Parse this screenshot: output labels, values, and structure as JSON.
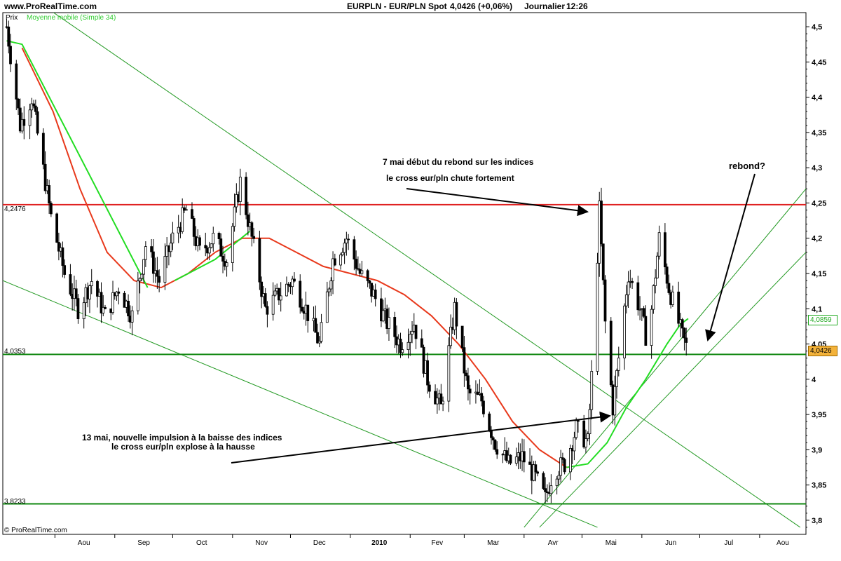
{
  "header": {
    "site": "www.ProRealTime.com",
    "instrument": "EURPLN - EUR/PLN Spot",
    "quote": "4,0426 (+0,06%)",
    "period": "Journalier",
    "time": "12:26"
  },
  "labels": {
    "price": "Prix",
    "ma_legend": "Moyenne mobile (Simple 34)",
    "copyright": "© ProRealTime.com"
  },
  "colors": {
    "up_candle": "#ffffff",
    "down_candle": "#000000",
    "ma_red": "#e8391c",
    "ma_green": "#22dd22",
    "resistance": "#e02020",
    "support": "#118811",
    "trendline": "#229922",
    "quote_box": "#f3b23a"
  },
  "annotations": [
    {
      "id": "a1",
      "text": "7 mai début du rebond sur les indices"
    },
    {
      "id": "a2",
      "text": "le cross eur/pln chute fortement"
    },
    {
      "id": "a3",
      "text": "rebond?"
    },
    {
      "id": "a4",
      "text": "13 mai, nouvelle impulsion à la baisse des indices"
    },
    {
      "id": "a5",
      "text": "le cross eur/pln explose à la hausse"
    }
  ],
  "chart_data": {
    "type": "candlestick",
    "title": "EURPLN - EUR/PLN Spot",
    "ylabel": "Prix",
    "ylim": [
      3.78,
      4.52
    ],
    "y_ticks": [
      "4,5",
      "4,45",
      "4,4",
      "4,35",
      "4,3",
      "4,25",
      "4,2",
      "4,15",
      "4,1",
      "4,05",
      "4",
      "3,95",
      "3,9",
      "3,85",
      "3,8"
    ],
    "x_ticks": [
      "Aou",
      "Sep",
      "Oct",
      "Nov",
      "Dec",
      "2010",
      "Fev",
      "Mar",
      "Avr",
      "Mai",
      "Jun",
      "Jul",
      "Aou"
    ],
    "horizontal_levels": [
      {
        "label": "4,2476",
        "value": 4.2476,
        "color": "red"
      },
      {
        "label": "4,0353",
        "value": 4.0353,
        "color": "green"
      },
      {
        "label": "3,8233",
        "value": 3.8233,
        "color": "green"
      }
    ],
    "last_price": {
      "label": "4,0426",
      "value": 4.0426
    },
    "ma_value": {
      "label": "4,0859",
      "value": 4.0859
    },
    "price_path": [
      [
        "2009-07-07",
        4.5
      ],
      [
        "2009-07-10",
        4.44
      ],
      [
        "2009-07-14",
        4.36
      ],
      [
        "2009-07-20",
        4.4
      ],
      [
        "2009-07-24",
        4.33
      ],
      [
        "2009-07-30",
        4.23
      ],
      [
        "2009-08-06",
        4.15
      ],
      [
        "2009-08-13",
        4.1
      ],
      [
        "2009-08-20",
        4.14
      ],
      [
        "2009-08-27",
        4.09
      ],
      [
        "2009-09-03",
        4.13
      ],
      [
        "2009-09-10",
        4.09
      ],
      [
        "2009-09-17",
        4.19
      ],
      [
        "2009-09-24",
        4.14
      ],
      [
        "2009-10-01",
        4.2
      ],
      [
        "2009-10-08",
        4.24
      ],
      [
        "2009-10-15",
        4.18
      ],
      [
        "2009-10-22",
        4.2
      ],
      [
        "2009-10-29",
        4.17
      ],
      [
        "2009-11-05",
        4.28
      ],
      [
        "2009-11-11",
        4.2
      ],
      [
        "2009-11-18",
        4.1
      ],
      [
        "2009-11-25",
        4.12
      ],
      [
        "2009-12-02",
        4.14
      ],
      [
        "2009-12-09",
        4.1
      ],
      [
        "2009-12-16",
        4.05
      ],
      [
        "2009-12-23",
        4.17
      ],
      [
        "2009-12-30",
        4.2
      ],
      [
        "2010-01-06",
        4.15
      ],
      [
        "2010-01-13",
        4.12
      ],
      [
        "2010-01-20",
        4.08
      ],
      [
        "2010-01-27",
        4.05
      ],
      [
        "2010-02-03",
        4.08
      ],
      [
        "2010-02-10",
        4.0
      ],
      [
        "2010-02-17",
        3.96
      ],
      [
        "2010-02-24",
        4.1
      ],
      [
        "2010-03-03",
        3.98
      ],
      [
        "2010-03-10",
        3.97
      ],
      [
        "2010-03-17",
        3.91
      ],
      [
        "2010-03-24",
        3.88
      ],
      [
        "2010-03-31",
        3.89
      ],
      [
        "2010-04-07",
        3.86
      ],
      [
        "2010-04-12",
        3.83
      ],
      [
        "2010-04-16",
        3.87
      ],
      [
        "2010-04-22",
        3.88
      ],
      [
        "2010-04-28",
        3.93
      ],
      [
        "2010-05-04",
        3.91
      ],
      [
        "2010-05-07",
        4.05
      ],
      [
        "2010-05-10",
        4.24
      ],
      [
        "2010-05-13",
        4.08
      ],
      [
        "2010-05-17",
        3.96
      ],
      [
        "2010-05-20",
        4.03
      ],
      [
        "2010-05-25",
        4.15
      ],
      [
        "2010-05-31",
        4.1
      ],
      [
        "2010-06-04",
        4.05
      ],
      [
        "2010-06-10",
        4.2
      ],
      [
        "2010-06-15",
        4.13
      ],
      [
        "2010-06-18",
        4.1
      ],
      [
        "2010-06-22",
        4.06
      ],
      [
        "2010-06-25",
        4.04
      ]
    ],
    "ma_red_path": [
      [
        "2009-07-15",
        4.47
      ],
      [
        "2009-07-31",
        4.38
      ],
      [
        "2009-08-14",
        4.27
      ],
      [
        "2009-08-28",
        4.18
      ],
      [
        "2009-09-11",
        4.14
      ],
      [
        "2009-09-25",
        4.13
      ],
      [
        "2009-10-09",
        4.15
      ],
      [
        "2009-10-23",
        4.18
      ],
      [
        "2009-11-06",
        4.2
      ],
      [
        "2009-11-20",
        4.2
      ],
      [
        "2009-12-04",
        4.18
      ],
      [
        "2009-12-18",
        4.16
      ],
      [
        "2010-01-01",
        4.15
      ],
      [
        "2010-01-15",
        4.14
      ],
      [
        "2010-01-29",
        4.12
      ],
      [
        "2010-02-12",
        4.09
      ],
      [
        "2010-02-26",
        4.05
      ],
      [
        "2010-03-12",
        4.0
      ],
      [
        "2010-03-26",
        3.94
      ],
      [
        "2010-04-09",
        3.9
      ],
      [
        "2010-04-23",
        3.875
      ]
    ],
    "ma_green_path": [
      [
        "2009-07-07",
        4.48
      ],
      [
        "2009-07-15",
        4.475
      ],
      [
        "2009-09-18",
        4.13
      ],
      [
        "2009-10-02",
        4.14
      ],
      [
        "2009-10-23",
        4.17
      ],
      [
        "2009-11-10",
        4.21
      ],
      [
        "2010-04-23",
        3.875
      ],
      [
        "2010-05-04",
        3.88
      ],
      [
        "2010-05-14",
        3.91
      ],
      [
        "2010-05-24",
        3.96
      ],
      [
        "2010-06-03",
        4.0
      ],
      [
        "2010-06-14",
        4.05
      ],
      [
        "2010-06-21",
        4.078
      ],
      [
        "2010-06-25",
        4.086
      ]
    ],
    "trendlines": [
      {
        "name": "upper-falling",
        "from": [
          "2009-07-26",
          4.53
        ],
        "to": [
          "2010-08-22",
          3.79
        ]
      },
      {
        "name": "lower-falling",
        "from": [
          "2009-07-05",
          4.14
        ],
        "to": [
          "2010-05-09",
          3.79
        ]
      },
      {
        "name": "rising-1",
        "from": [
          "2010-04-01",
          3.79
        ],
        "to": [
          "2010-08-25",
          4.27
        ]
      },
      {
        "name": "rising-2",
        "from": [
          "2010-04-09",
          3.79
        ],
        "to": [
          "2010-08-25",
          4.18
        ]
      }
    ],
    "x_range": [
      "2009-07-05",
      "2010-08-25"
    ]
  }
}
